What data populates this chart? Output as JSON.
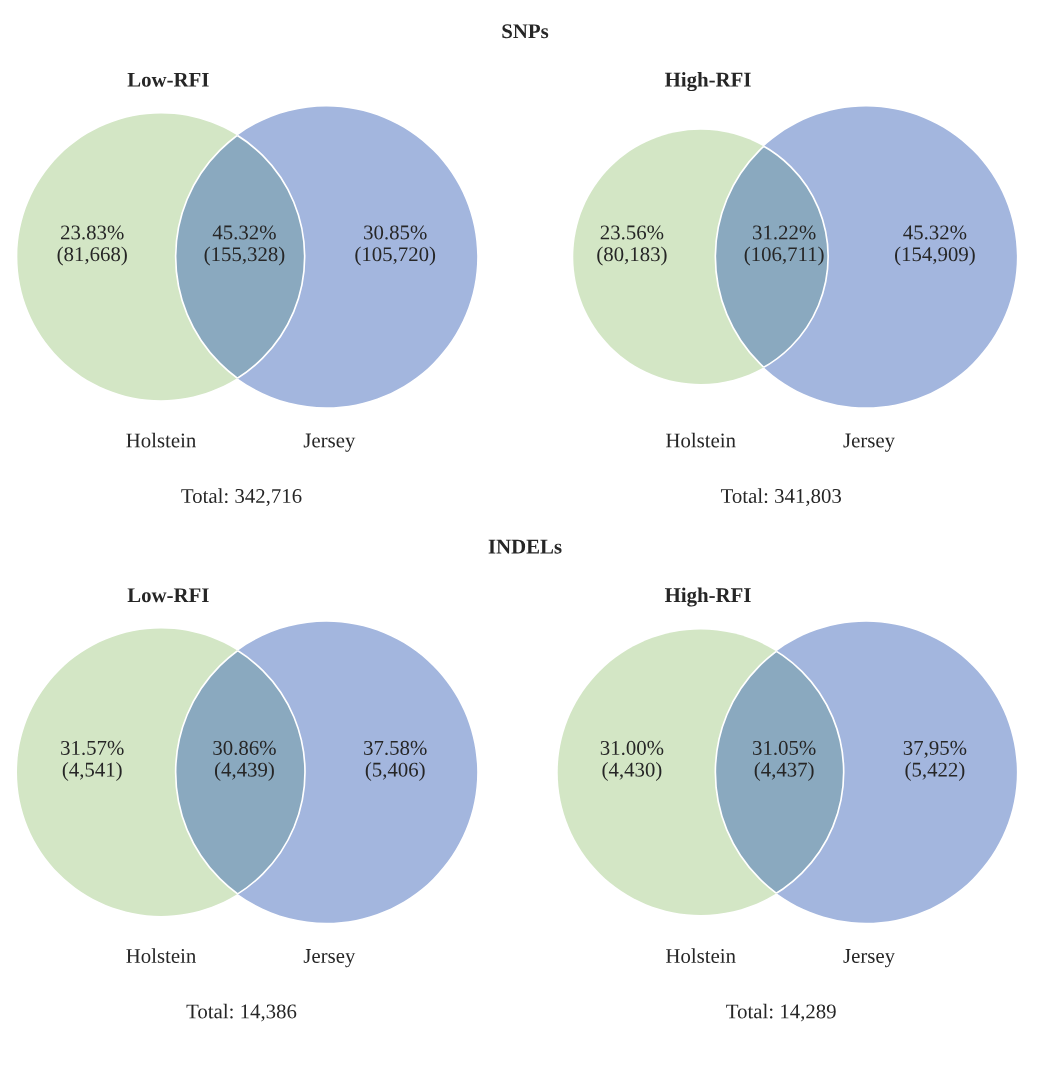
{
  "chart_data": [
    {
      "type": "other",
      "subtitle": "SNPs",
      "title": "Low-RFI",
      "categories": [
        "Holstein",
        null,
        "Jersey"
      ],
      "values": [
        81668,
        155328,
        105720
      ],
      "value_labels": [
        "23.83%\n(81,668)",
        "45.32%\n(155,328)",
        "30.85%\n(105,720)"
      ],
      "colors": [
        "#d3e6c5",
        "#8aa9bf",
        "#a3b6de"
      ],
      "annotations": [
        "Total: 342,716"
      ]
    },
    {
      "type": "other",
      "title": "High-RFI",
      "categories": [
        "Holstein",
        null,
        "Jersey"
      ],
      "values": [
        80183,
        106711,
        154909
      ],
      "value_labels": [
        "23.56%\n(80,183)",
        "31.22%\n(106,711)",
        "45.32%\n(154,909)"
      ],
      "colors": [
        "#d3e6c5",
        "#8aa9bf",
        "#a3b6de"
      ],
      "annotations": [
        "Total: 341,803"
      ]
    },
    {
      "type": "other",
      "subtitle": "INDELs",
      "title": "Low-RFI",
      "categories": [
        "Holstein",
        null,
        "Jersey"
      ],
      "values": [
        4541,
        4439,
        5406
      ],
      "value_labels": [
        "31.57%\n(4,541)",
        "30.86%\n(4,439)",
        "37.58%\n(5,406)"
      ],
      "colors": [
        "#d3e6c5",
        "#8aa9bf",
        "#a3b6de"
      ],
      "annotations": [
        "Total: 14,386"
      ]
    },
    {
      "type": "other",
      "title": "High-RFI",
      "categories": [
        "Holstein",
        null,
        "Jersey"
      ],
      "values": [
        4430,
        4437,
        5422
      ],
      "value_labels": [
        "31.00%\n(4,430)",
        "31.05%\n(4,437)",
        "37,95%\n(5,422)"
      ],
      "colors": [
        "#d3e6c5",
        "#8aa9bf",
        "#a3b6de"
      ],
      "annotations": [
        "Total: 14,289"
      ]
    }
  ]
}
